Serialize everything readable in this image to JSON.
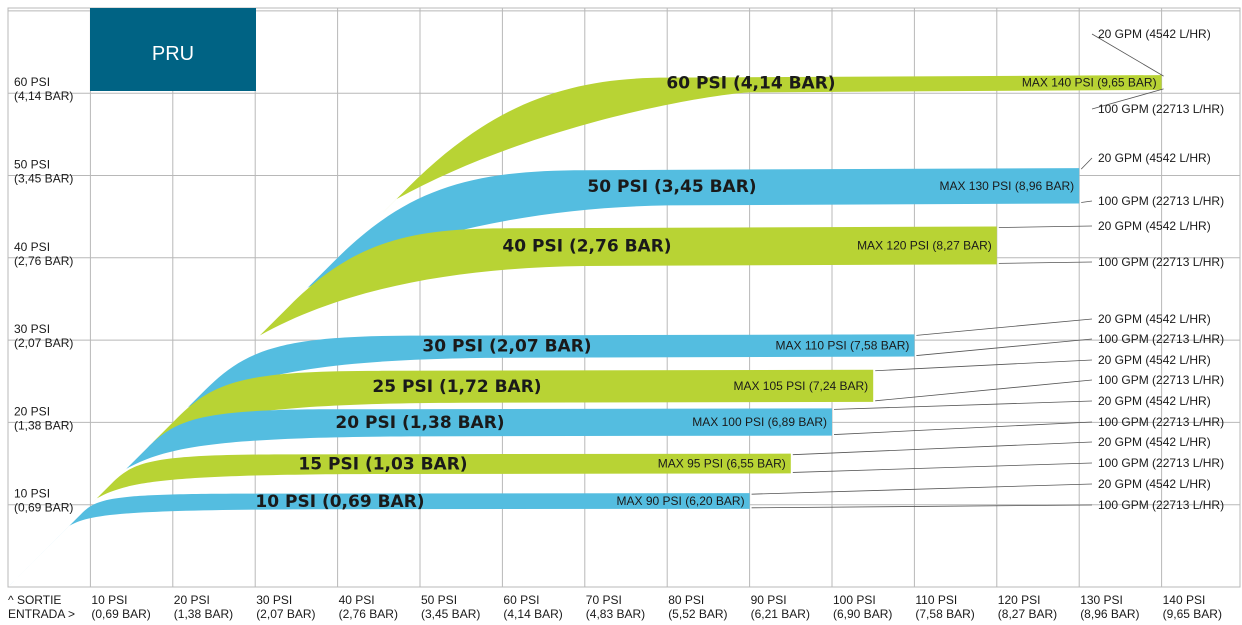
{
  "brand": {
    "label": "PRU",
    "color": "#006384"
  },
  "colors": {
    "blue": "#54bde0",
    "green": "#b8d334",
    "grid": "#b8b8b8",
    "text": "#1a1a1a"
  },
  "chart_data": {
    "type": "area",
    "title": "",
    "xlabel": "ENTRADA >",
    "ylabel": "^ SORTIE",
    "xlim": [
      0,
      140
    ],
    "ylim": [
      0,
      70
    ],
    "grid": true,
    "x_ticks": [
      {
        "value": 10,
        "line1": "10 PSI",
        "line2": "(0,69 BAR)"
      },
      {
        "value": 20,
        "line1": "20 PSI",
        "line2": "(1,38 BAR)"
      },
      {
        "value": 30,
        "line1": "30 PSI",
        "line2": "(2,07 BAR)"
      },
      {
        "value": 40,
        "line1": "40 PSI",
        "line2": "(2,76 BAR)"
      },
      {
        "value": 50,
        "line1": "50 PSI",
        "line2": "(3,45 BAR)"
      },
      {
        "value": 60,
        "line1": "60 PSI",
        "line2": "(4,14 BAR)"
      },
      {
        "value": 70,
        "line1": "70 PSI",
        "line2": "(4,83 BAR)"
      },
      {
        "value": 80,
        "line1": "80 PSI",
        "line2": "(5,52 BAR)"
      },
      {
        "value": 90,
        "line1": "90 PSI",
        "line2": "(6,21 BAR)"
      },
      {
        "value": 100,
        "line1": "100 PSI",
        "line2": "(6,90 BAR)"
      },
      {
        "value": 110,
        "line1": "110 PSI",
        "line2": "(7,58 BAR)"
      },
      {
        "value": 120,
        "line1": "120 PSI",
        "line2": "(8,27 BAR)"
      },
      {
        "value": 130,
        "line1": "130 PSI",
        "line2": "(8,96 BAR)"
      },
      {
        "value": 140,
        "line1": "140 PSI",
        "line2": "(9,65 BAR)"
      }
    ],
    "y_ticks": [
      {
        "value": 10,
        "line1": "10 PSI",
        "line2": "(0,69 BAR)"
      },
      {
        "value": 20,
        "line1": "20 PSI",
        "line2": "(1,38 BAR)"
      },
      {
        "value": 30,
        "line1": "30 PSI",
        "line2": "(2,07 BAR)"
      },
      {
        "value": 40,
        "line1": "40 PSI",
        "line2": "(2,76 BAR)"
      },
      {
        "value": 50,
        "line1": "50 PSI",
        "line2": "(3,45 BAR)"
      },
      {
        "value": 60,
        "line1": "60 PSI",
        "line2": "(4,14 BAR)"
      }
    ],
    "series": [
      {
        "name": "10 PSI  (0,69 BAR)",
        "setpoint": 10,
        "max_inlet": 90,
        "max_label": "MAX 90 PSI  (6,20 BAR)",
        "color": "green_blue",
        "fill": "blue",
        "top_outlet": 11.4,
        "bottom_outlet": 9.5,
        "flow_low": "20 GPM (4542 L/HR)",
        "flow_high": "100 GPM (22713 L/HR)"
      },
      {
        "name": "15 PSI  (1,03 BAR)",
        "setpoint": 15,
        "max_inlet": 95,
        "max_label": "MAX 95 PSI  (6,55 BAR)",
        "fill": "green",
        "top_outlet": 16.2,
        "bottom_outlet": 13.8,
        "flow_low": "20 GPM (4542 L/HR)",
        "flow_high": "100 GPM (22713 L/HR)"
      },
      {
        "name": "20 PSI  (1,38 BAR)",
        "setpoint": 20,
        "max_inlet": 100,
        "max_label": "MAX 100 PSI  (6,89 BAR)",
        "fill": "blue",
        "top_outlet": 21.7,
        "bottom_outlet": 18.4,
        "flow_low": "20 GPM (4542 L/HR)",
        "flow_high": "100 GPM (22713 L/HR)"
      },
      {
        "name": "25 PSI  (1,72 BAR)",
        "setpoint": 25,
        "max_inlet": 105,
        "max_label": "MAX 105 PSI  (7,24 BAR)",
        "fill": "green",
        "top_outlet": 26.4,
        "bottom_outlet": 22.5,
        "flow_low": "20 GPM (4542 L/HR)",
        "flow_high": "100 GPM (22713 L/HR)"
      },
      {
        "name": "30 PSI  (2,07 BAR)",
        "setpoint": 30,
        "max_inlet": 110,
        "max_label": "MAX 110 PSI  (7,58 BAR)",
        "fill": "blue",
        "top_outlet": 30.7,
        "bottom_outlet": 28.0,
        "flow_low": "20 GPM (4542 L/HR)",
        "flow_high": "100 GPM (22713 L/HR)"
      },
      {
        "name": "40 PSI  (2,76 BAR)",
        "setpoint": 40,
        "max_inlet": 120,
        "max_label": "MAX 120 PSI  (8,27 BAR)",
        "fill": "green",
        "top_outlet": 43.8,
        "bottom_outlet": 39.2,
        "flow_low": "20 GPM (4542 L/HR)",
        "flow_high": "100 GPM (22713 L/HR)"
      },
      {
        "name": "50 PSI  (3,45 BAR)",
        "setpoint": 50,
        "max_inlet": 130,
        "max_label": "MAX 130 PSI  (8,96 BAR)",
        "fill": "blue",
        "top_outlet": 50.9,
        "bottom_outlet": 46.6,
        "flow_low": "20 GPM (4542 L/HR)",
        "flow_high": "100 GPM (22713 L/HR)"
      },
      {
        "name": "60 PSI  (4,14 BAR)",
        "setpoint": 60,
        "max_inlet": 140,
        "max_label": "MAX 140 PSI  (9,65 BAR)",
        "fill": "green",
        "top_outlet": 62.2,
        "bottom_outlet": 60.4,
        "flow_low": "20 GPM (4542 L/HR)",
        "flow_high": "100 GPM (22713 L/HR)"
      }
    ]
  }
}
